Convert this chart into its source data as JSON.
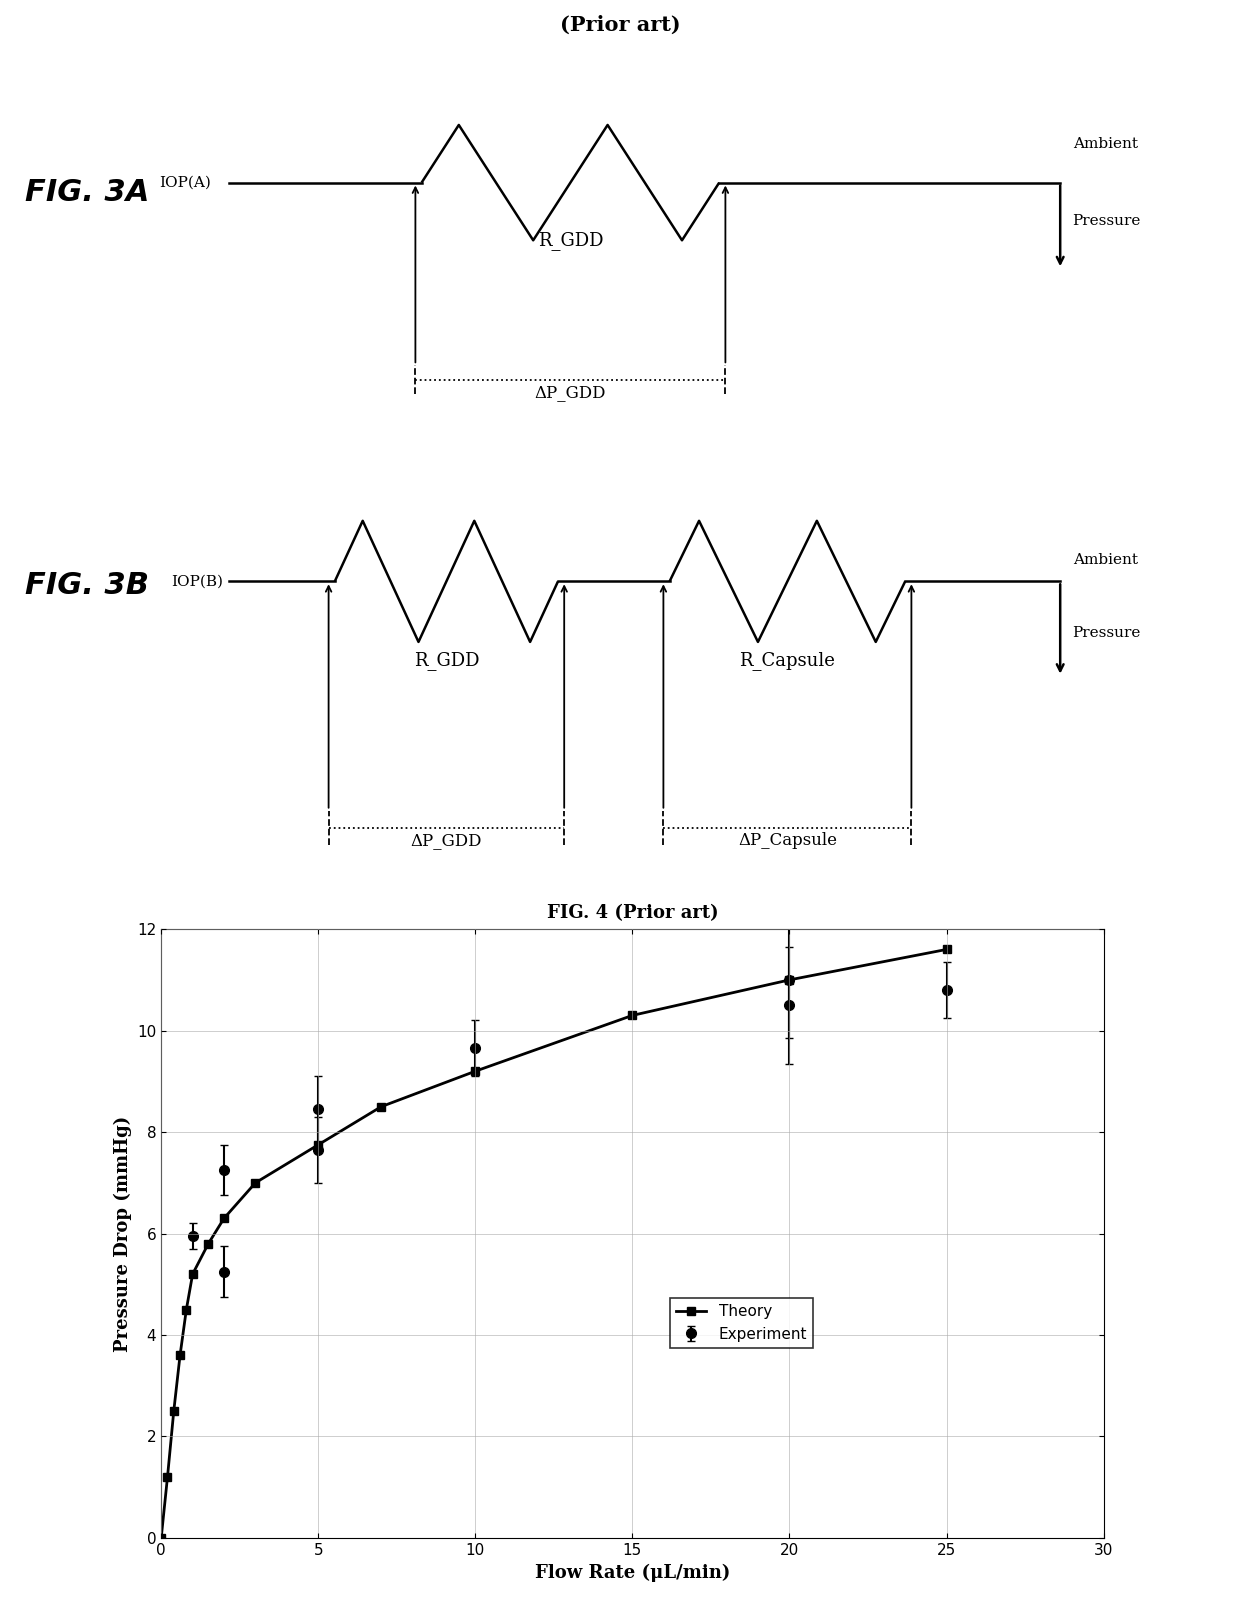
{
  "fig3a_title": "(Prior art)",
  "fig3a_label": "FIG. 3A",
  "fig3b_label": "FIG. 3B",
  "fig4_title": "FIG. 4 (Prior art)",
  "fig4_xlabel": "Flow Rate (μL/min)",
  "fig4_ylabel": "Pressure Drop (mmHg)",
  "theory_x": [
    0,
    0.2,
    0.4,
    0.6,
    0.8,
    1.0,
    1.5,
    2.0,
    3.0,
    5.0,
    7.0,
    10.0,
    15.0,
    20.0,
    25.0
  ],
  "theory_y": [
    0,
    1.2,
    2.5,
    3.6,
    4.5,
    5.2,
    5.8,
    6.3,
    7.0,
    7.75,
    8.5,
    9.2,
    10.3,
    11.0,
    11.6
  ],
  "exp_x": [
    1.0,
    2.0,
    2.0,
    5.0,
    5.0,
    10.0,
    20.0,
    20.0,
    25.0
  ],
  "exp_y": [
    5.95,
    5.25,
    7.25,
    7.65,
    8.45,
    9.65,
    10.5,
    11.0,
    10.8
  ],
  "exp_yerr": [
    0.25,
    0.5,
    0.5,
    0.65,
    0.65,
    0.55,
    1.15,
    1.15,
    0.55
  ],
  "xlim": [
    0,
    30
  ],
  "ylim": [
    0,
    12
  ],
  "xticks": [
    0,
    5,
    10,
    15,
    20,
    25,
    30
  ],
  "yticks": [
    0,
    2,
    4,
    6,
    8,
    10,
    12
  ],
  "background_color": "#ffffff",
  "legend_theory": "Theory",
  "legend_exp": "Experiment"
}
